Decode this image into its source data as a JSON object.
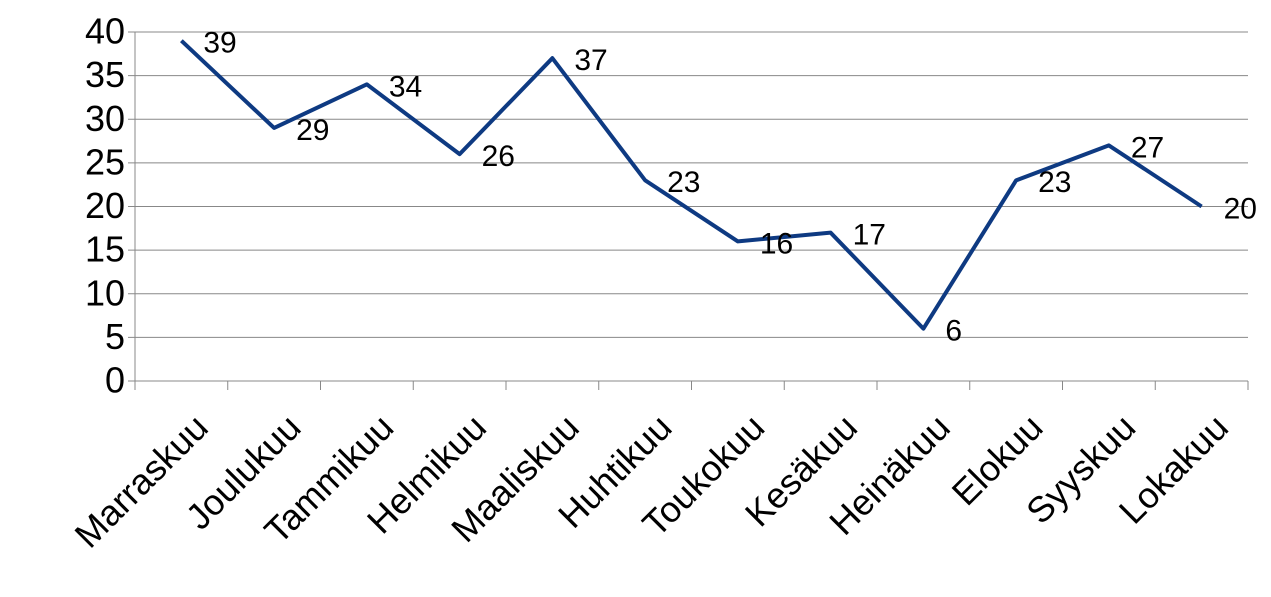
{
  "chart_data": {
    "type": "line",
    "categories": [
      "Marraskuu",
      "Joulukuu",
      "Tammikuu",
      "Helmikuu",
      "Maaliskuu",
      "Huhtikuu",
      "Toukokuu",
      "Kesäkuu",
      "Heinäkuu",
      "Elokuu",
      "Syyskuu",
      "Lokakuu"
    ],
    "values": [
      39,
      29,
      34,
      26,
      37,
      23,
      16,
      17,
      6,
      23,
      27,
      20
    ],
    "color": "#0e3a82",
    "ylim": [
      0,
      40
    ],
    "yticks": [
      0,
      5,
      10,
      15,
      20,
      25,
      30,
      35,
      40
    ],
    "grid": true
  }
}
